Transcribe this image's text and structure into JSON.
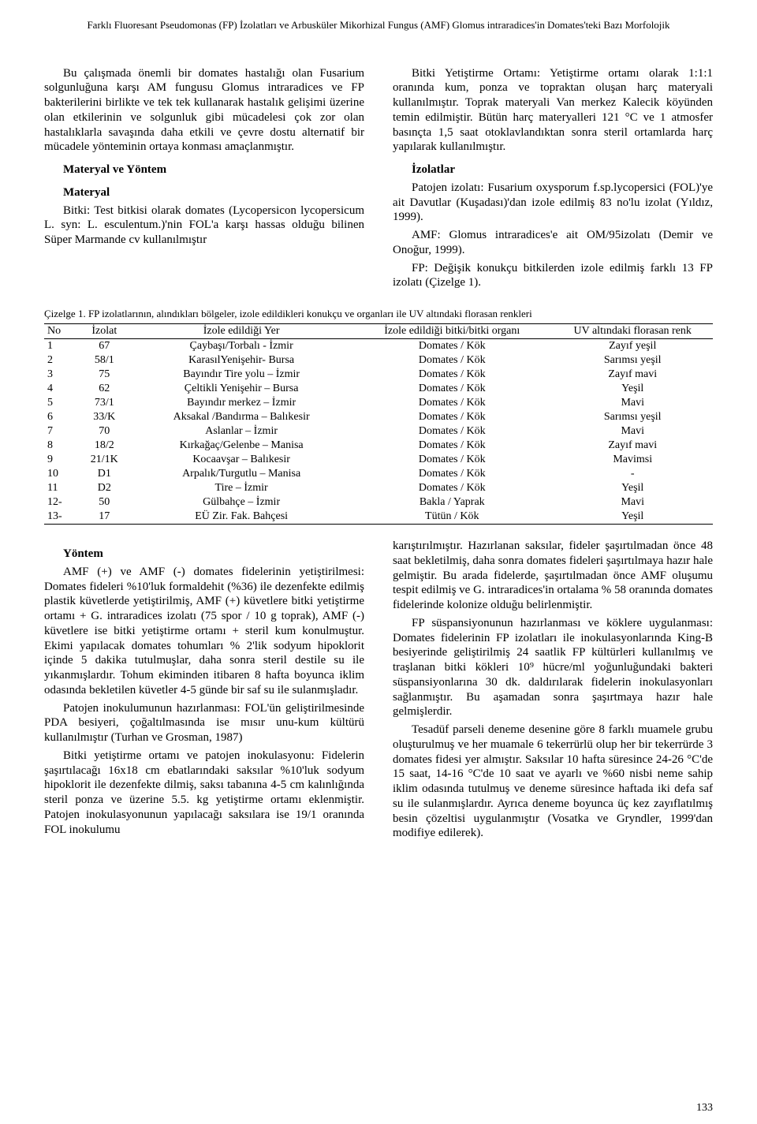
{
  "running_header": "Farklı Fluoresant Pseudomonas (FP) İzolatları ve Arbusküler Mikorhizal Fungus (AMF) Glomus intraradices'in Domates'teki Bazı Morfolojik",
  "page_number": "133",
  "left_col": {
    "p1": "Bu çalışmada önemli bir domates hastalığı olan Fusarium solgunluğuna karşı AM fungusu Glomus intraradices ve FP bakterilerini birlikte ve tek tek kullanarak hastalık gelişimi üzerine olan etkilerinin ve solgunluk gibi mücadelesi çok zor olan hastalıklarla savaşında daha etkili ve çevre dostu alternatif bir mücadele yönteminin ortaya konması amaçlanmıştır.",
    "h1": "Materyal ve Yöntem",
    "h2": "Materyal",
    "p2": "Bitki: Test bitkisi olarak domates (Lycopersicon lycopersicum L. syn: L. esculentum.)'nin FOL'a karşı hassas olduğu bilinen Süper Marmande cv kullanılmıştır"
  },
  "right_col": {
    "p1": "Bitki Yetiştirme Ortamı: Yetiştirme ortamı olarak 1:1:1 oranında kum, ponza ve topraktan oluşan harç materyali kullanılmıştır. Toprak materyali Van merkez Kalecik köyünden temin edilmiştir. Bütün harç materyalleri 121 °C ve 1 atmosfer basınçta 1,5 saat otoklavlandıktan sonra steril ortamlarda harç yapılarak kullanılmıştır.",
    "h1": "İzolatlar",
    "p2": "Patojen izolatı: Fusarium oxysporum f.sp.lycopersici (FOL)'ye ait Davutlar (Kuşadası)'dan izole edilmiş 83 no'lu izolat (Yıldız, 1999).",
    "p3": "AMF: Glomus intraradices'e ait OM/95izolatı (Demir ve Onoğur, 1999).",
    "p4": "FP: Değişik konukçu bitkilerden izole edilmiş farklı 13 FP izolatı (Çizelge 1)."
  },
  "table": {
    "caption": "Çizelge 1. FP izolatlarının, alındıkları bölgeler, izole edildikleri konukçu ve organları ile UV altındaki florasan renkleri",
    "columns": [
      "No",
      "İzolat",
      "İzole edildiği Yer",
      "İzole edildiği bitki/bitki organı",
      "UV altındaki florasan renk"
    ],
    "rows": [
      [
        "1",
        "67",
        "Çaybaşı/Torbalı - İzmir",
        "Domates / Kök",
        "Zayıf yeşil"
      ],
      [
        "2",
        "58/1",
        "KarasılYenişehir- Bursa",
        "Domates / Kök",
        "Sarımsı yeşil"
      ],
      [
        "3",
        "75",
        "Bayındır Tire yolu – İzmir",
        "Domates / Kök",
        "Zayıf mavi"
      ],
      [
        "4",
        "62",
        "Çeltikli Yenişehir – Bursa",
        "Domates / Kök",
        "Yeşil"
      ],
      [
        "5",
        "73/1",
        "Bayındır merkez – İzmir",
        "Domates / Kök",
        "Mavi"
      ],
      [
        "6",
        "33/K",
        "Aksakal /Bandırma – Balıkesir",
        "Domates / Kök",
        "Sarımsı yeşil"
      ],
      [
        "7",
        "70",
        "Aslanlar – İzmir",
        "Domates / Kök",
        "Mavi"
      ],
      [
        "8",
        "18/2",
        "Kırkağaç/Gelenbe – Manisa",
        "Domates / Kök",
        "Zayıf mavi"
      ],
      [
        "9",
        "21/1K",
        "Kocaavşar – Balıkesir",
        "Domates / Kök",
        "Mavimsi"
      ],
      [
        "10",
        "D1",
        "Arpalık/Turgutlu – Manisa",
        "Domates / Kök",
        "-"
      ],
      [
        "11",
        "D2",
        "Tire – İzmir",
        "Domates / Kök",
        "Yeşil"
      ],
      [
        "12-",
        "50",
        "Gülbahçe – İzmir",
        "Bakla / Yaprak",
        "Mavi"
      ],
      [
        "13-",
        "17",
        "EÜ Zir. Fak. Bahçesi",
        "Tütün / Kök",
        "Yeşil"
      ]
    ]
  },
  "lower_left": {
    "h1": "Yöntem",
    "p1": "AMF (+) ve AMF (-) domates fidelerinin yetiştirilmesi: Domates fideleri %10'luk formaldehit (%36) ile dezenfekte edilmiş plastik küvetlerde yetiştirilmiş, AMF (+) küvetlere bitki yetiştirme ortamı + G. intraradices izolatı (75 spor / 10 g toprak), AMF (-) küvetlere ise bitki yetiştirme ortamı + steril kum konulmuştur. Ekimi yapılacak domates tohumları % 2'lik sodyum hipoklorit içinde 5 dakika tutulmuşlar, daha sonra steril destile su ile yıkanmışlardır. Tohum ekiminden itibaren 8 hafta boyunca iklim odasında bekletilen küvetler 4-5 günde bir saf su ile sulanmışladır.",
    "p2": "Patojen inokulumunun hazırlanması: FOL'ün geliştirilmesinde PDA besiyeri, çoğaltılmasında ise mısır unu-kum kültürü kullanılmıştır (Turhan ve Grosman, 1987)",
    "p3": "Bitki yetiştirme ortamı ve patojen inokulasyonu: Fidelerin şaşırtılacağı 16x18 cm ebatlarındaki saksılar %10'luk sodyum hipoklorit ile dezenfekte dilmiş, saksı tabanına 4-5 cm kalınlığında steril ponza ve üzerine 5.5. kg yetiştirme ortamı eklenmiştir. Patojen inokulasyonunun yapılacağı saksılara ise 19/1 oranında FOL inokulumu"
  },
  "lower_right": {
    "p1": "karıştırılmıştır. Hazırlanan saksılar, fideler şaşırtılmadan önce 48 saat bekletilmiş, daha sonra domates fideleri şaşırtılmaya hazır hale gelmiştir. Bu arada fidelerde, şaşırtılmadan önce AMF oluşumu tespit edilmiş ve G. intraradices'in ortalama % 58 oranında domates fidelerinde kolonize olduğu belirlenmiştir.",
    "p2": "FP süspansiyonunun hazırlanması ve köklere uygulanması: Domates fidelerinin FP izolatları ile inokulasyonlarında King-B besiyerinde geliştirilmiş 24 saatlik FP kültürleri kullanılmış ve traşlanan bitki kökleri 10⁹ hücre/ml yoğunluğundaki bakteri süspansiyonlarına 30 dk. daldırılarak fidelerin inokulasyonları sağlanmıştır. Bu aşamadan sonra şaşırtmaya hazır hale gelmişlerdir.",
    "p3": "Tesadüf parseli deneme desenine göre 8 farklı muamele grubu oluşturulmuş ve her muamale 6 tekerrürlü olup her bir tekerrürde 3 domates fidesi yer almıştır. Saksılar 10 hafta süresince 24-26 °C'de 15 saat, 14-16 °C'de 10 saat ve ayarlı ve %60 nisbi neme sahip iklim odasında tutulmuş ve deneme süresince haftada iki defa saf su ile sulanmışlardır. Ayrıca deneme boyunca üç kez zayıflatılmış besin çözeltisi uygulanmıştır (Vosatka ve Gryndler, 1999'dan modifiye edilerek)."
  }
}
